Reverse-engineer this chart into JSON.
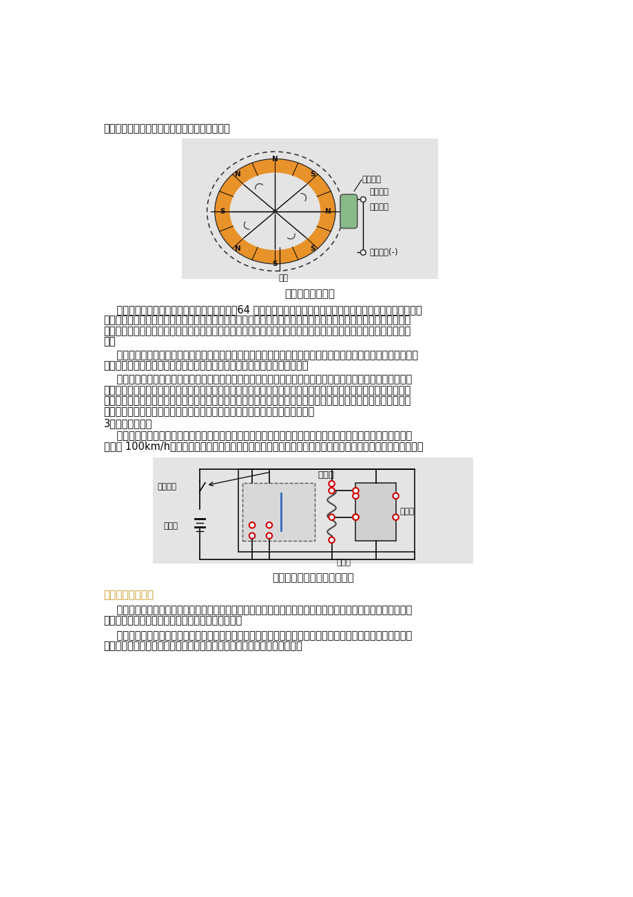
{
  "page_bg": "#ffffff",
  "text_color": "#000000",
  "heading_color": "#c8961e",
  "fig_width": 9.2,
  "fig_height": 13.02,
  "line1": "由具有一对或几对触点的舌簧开关和转子组成。",
  "diagram1_caption": "车速里程表传感器",
  "para1_lines": [
    "    信号处理电路由单稳态触发电路、恒流电路、64 分频电路、功率放大电路以及电源稳压等电子电路组成。汽车运",
    "行时，它将车速传感器输入的脉冲信号，整形和处理转变为电流信号，并加以放大，以驱动车速表指示车速；同时它",
    "还将脉冲信号经分频和功率放大，转变为一定频率的脉冲信号，以驱动里程表步进电机的轴转动，记录汽车的行驶里",
    "程。"
  ],
  "para2_lines": [
    "    车速表以一个磁电式电流表作为指示表。汽车以不同的车速运行时，信号处理电路将车速传感器输入的脉冲信号，",
    "转变为与车速成比例的电流信号，使电流表的指针偏转，指示出相应的车速。"
  ],
  "para3_lines": [
    "    里程表由步进式电动机、六位十进制计数器及内传动齿轮等组成。汽车运行时车速传感器输出的脉冲信号，经信",
    "号处理电路分频和功率放大，转变为一定频率的脉冲信号，作用于步进电动机的电磁线圈。步进电机将这一脉冲信号",
    "转变为角位移信号，使电动机轴转动，驱动里程表十进制计数器的六个计数轮依次转动，记录汽车行驶的总里程和单",
    "程行驶里程。当需要消除短程里程时，只需按一次复位杆，短里程表就会归零。"
  ],
  "subhead1": "3．车速报警装置",
  "para4_lines": [
    "    为了保证行车安全，一些车型的车速表电路中装有速度音响报警装置。当汽车行驶速度达到或超过某一限定车速",
    "（例如 100km/h）时车速表内的速度开关接通蜂鸣器的电路，蜂鸣器发出声响提醒驾驶员，车速已超过限定值。"
  ],
  "diagram2_caption": "车速报警装置电路原理示意图",
  "heading2": "二、发动机转速表",
  "para5_lines": [
    "    发动机转速表可以直观地指示发动机的转速，是发动机工况信息的指示装置，便于驾驶员选择发动机的最佳速度",
    "范围，把握好换档时机，以及充分利用经济车速等。"
  ],
  "para6_lines": [
    "    发动机转速表有机械式和电子式两种。机械式转速表的结构和工作原理与上述磁感应式车速表基本相同。电子式",
    "转速表由于结构简单、指示准确、安装方便等优点在现代车辆中应用广泛。"
  ]
}
